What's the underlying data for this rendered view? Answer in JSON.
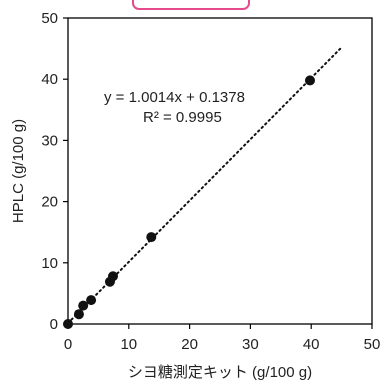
{
  "chart_data": {
    "type": "scatter",
    "title": "",
    "xlabel": "シヨ糖測定キット (g/100 g)",
    "ylabel": "HPLC (g/100 g)",
    "xlim": [
      0,
      50
    ],
    "ylim": [
      0,
      50
    ],
    "x_ticks": [
      "0",
      "10",
      "20",
      "30",
      "40",
      "50"
    ],
    "y_ticks": [
      "0",
      "10",
      "20",
      "30",
      "40",
      "50"
    ],
    "grid": false,
    "series": [
      {
        "x": [
          0.0,
          1.8,
          2.5,
          3.8,
          6.9,
          7.4,
          13.7,
          39.8
        ],
        "y": [
          0.0,
          1.6,
          3.0,
          3.9,
          6.9,
          7.8,
          14.2,
          39.8
        ],
        "color": "#111111",
        "marker": "circle"
      }
    ],
    "trendline": {
      "style": "dotted",
      "color": "#111111",
      "slope": 1.0014,
      "intercept": 0.1378,
      "x_range": [
        0,
        45
      ]
    },
    "annotations": {
      "equation": "y = 1.0014x + 0.1378",
      "r_squared": "R² = 0.9995"
    }
  }
}
